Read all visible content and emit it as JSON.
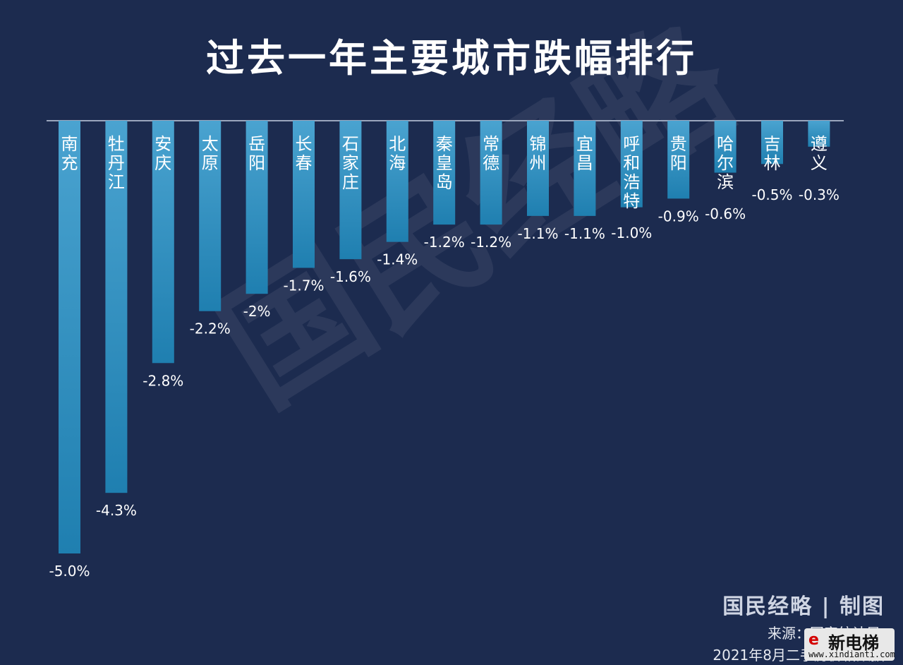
{
  "title": "过去一年主要城市跌幅排行",
  "watermark": "国民经略",
  "brand": "国民经略 | 制图",
  "source": "来源：国家统计局",
  "note": "2021年8月二手房价格数据",
  "logo": {
    "text": "新电梯",
    "url": "www.xindianti.com",
    "mark_icon": "e"
  },
  "colors": {
    "background": "#1c2b4f",
    "bar_top": "#4aa3d0",
    "bar_bottom": "#1f7fb0",
    "text": "#ffffff",
    "axis": "#9aa6bd"
  },
  "chart_data": {
    "type": "bar",
    "title": "过去一年主要城市跌幅排行",
    "categories": [
      "南充",
      "牡丹江",
      "安庆",
      "太原",
      "岳阳",
      "长春",
      "石家庄",
      "北海",
      "秦皇岛",
      "常德",
      "锦州",
      "宜昌",
      "呼和浩特",
      "贵阳",
      "哈尔滨",
      "吉林",
      "遵义"
    ],
    "values": [
      -5.0,
      -4.3,
      -2.8,
      -2.2,
      -2.0,
      -1.7,
      -1.6,
      -1.4,
      -1.2,
      -1.2,
      -1.1,
      -1.1,
      -1.0,
      -0.9,
      -0.6,
      -0.5,
      -0.3
    ],
    "data_labels": [
      "-5.0%",
      "-4.3%",
      "-2.8%",
      "-2.2%",
      "-2%",
      "-1.7%",
      "-1.6%",
      "-1.4%",
      "-1.2%",
      "-1.2%",
      "-1.1%",
      "-1.1%",
      "-1.0%",
      "-0.9%",
      "-0.6%",
      "-0.5%",
      "-0.3%"
    ],
    "ylim": [
      -5.0,
      0
    ],
    "grid": false,
    "xlabel": "",
    "ylabel": ""
  }
}
